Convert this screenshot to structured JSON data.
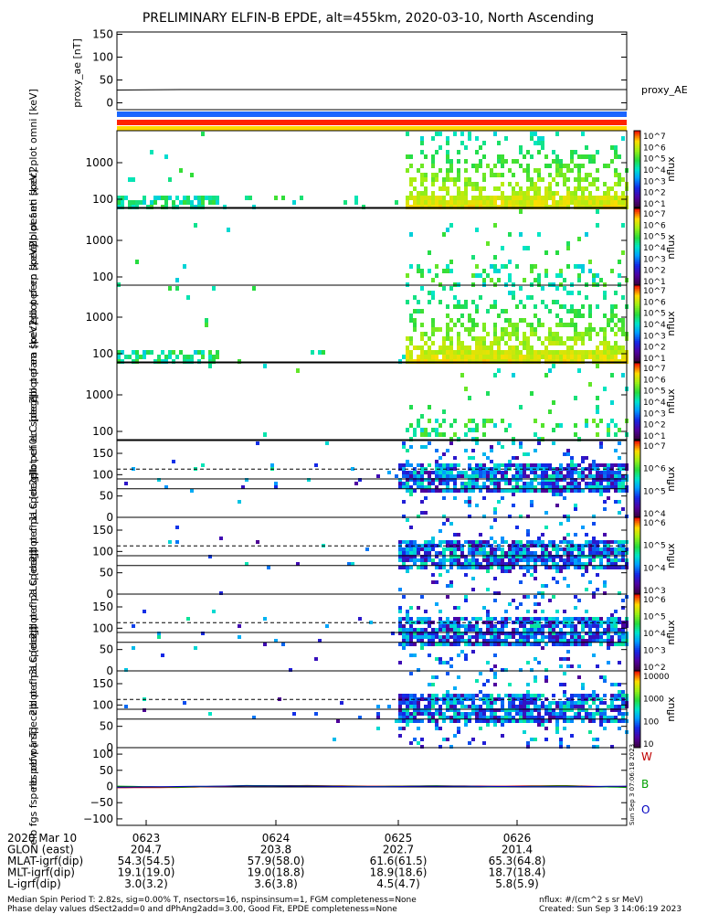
{
  "title": "PRELIMINARY ELFIN-B EPDE, alt=455km, 2020-03-10, North Ascending",
  "colors": {
    "orbit_bar_1": "#1a66ff",
    "orbit_bar_2": "#ff2200",
    "orbit_bar_3": "#ffd700"
  },
  "chart_data": [
    {
      "type": "line",
      "ylabel": "proxy_ae [nT]",
      "yticks": [
        "150",
        "100",
        "50",
        "0"
      ],
      "ylim": [
        -15,
        155
      ],
      "series": [
        {
          "name": "proxy_AE",
          "values": [
            28,
            29,
            29,
            29,
            29,
            29,
            29,
            29,
            29
          ]
        }
      ]
    },
    {
      "type": "heatmap",
      "ylabel": "elb pef en spec2plot omni [keV]",
      "yscale": "log",
      "yticks": [
        "1000",
        "100"
      ],
      "ylim": [
        60,
        6000
      ],
      "colorbar": {
        "label": "nflux",
        "ticks": [
          "10^7",
          "10^6",
          "10^5",
          "10^4",
          "10^3",
          "10^2",
          "10^1"
        ]
      }
    },
    {
      "type": "heatmap",
      "ylabel": "elb pef en spec2plot anti [keV]",
      "yscale": "log",
      "yticks": [
        "1000",
        "100"
      ],
      "ylim": [
        60,
        6000
      ],
      "colorbar": {
        "label": "nflux",
        "ticks": [
          "10^7",
          "10^6",
          "10^5",
          "10^4",
          "10^3",
          "10^2",
          "10^1"
        ]
      }
    },
    {
      "type": "heatmap",
      "ylabel": "elb pef en spec2plot perp [keV]",
      "yscale": "log",
      "yticks": [
        "1000",
        "100"
      ],
      "ylim": [
        60,
        6000
      ],
      "colorbar": {
        "label": "nflux",
        "ticks": [
          "10^7",
          "10^6",
          "10^5",
          "10^4",
          "10^3",
          "10^2",
          "10^1"
        ]
      }
    },
    {
      "type": "heatmap",
      "ylabel": "elb pef en spec2plot para [keV]",
      "yscale": "log",
      "yticks": [
        "1000",
        "100"
      ],
      "ylim": [
        60,
        6000
      ],
      "colorbar": {
        "label": "nflux",
        "ticks": [
          "10^7",
          "10^6",
          "10^5",
          "10^4",
          "10^3",
          "10^2",
          "10^1"
        ]
      }
    },
    {
      "type": "heatmap",
      "ylabel": "elb pef pa spec2plot ch0LC [deg]",
      "yticks": [
        "150",
        "100",
        "50",
        "0"
      ],
      "ylim": [
        0,
        180
      ],
      "colorbar": {
        "label": "nflux",
        "ticks": [
          "10^7",
          "10^6",
          "10^5",
          "10^4"
        ]
      }
    },
    {
      "type": "heatmap",
      "ylabel": "elb pef pa spec2plot ch1LC [deg]",
      "yticks": [
        "150",
        "100",
        "50",
        "0"
      ],
      "ylim": [
        0,
        180
      ],
      "colorbar": {
        "label": "nflux",
        "ticks": [
          "10^6",
          "10^5",
          "10^4",
          "10^3"
        ]
      }
    },
    {
      "type": "heatmap",
      "ylabel": "elb pef pa spec2plot ch2LC [deg]",
      "yticks": [
        "150",
        "100",
        "50",
        "0"
      ],
      "ylim": [
        0,
        180
      ],
      "colorbar": {
        "label": "nflux",
        "ticks": [
          "10^6",
          "10^5",
          "10^4",
          "10^3",
          "10^2"
        ]
      }
    },
    {
      "type": "heatmap",
      "ylabel": "elb pef pa spec2plot ch3LC [deg]",
      "yticks": [
        "150",
        "100",
        "50",
        "0"
      ],
      "ylim": [
        0,
        180
      ],
      "colorbar": {
        "label": "nflux",
        "ticks": [
          "10000",
          "1000",
          "100",
          "10"
        ]
      }
    },
    {
      "type": "line",
      "ylabel": "elb fgs fsp res obw [nT]",
      "yticks": [
        "100",
        "50",
        "0",
        "−50",
        "−100"
      ],
      "ylim": [
        -120,
        120
      ],
      "series": [
        {
          "name": "W",
          "values": [
            -4,
            -3,
            2,
            3,
            1,
            2,
            1,
            3,
            -2
          ]
        },
        {
          "name": "B",
          "values": [
            1,
            -2,
            3,
            2,
            0,
            2,
            -1,
            2,
            -3
          ]
        },
        {
          "name": "O",
          "values": [
            -2,
            0,
            2,
            1,
            -1,
            1,
            0,
            -1,
            1
          ]
        }
      ],
      "sidenote": "Sun Sep 3 07:06:18 2023"
    }
  ],
  "orbit_table": {
    "rows": [
      {
        "label": "2020 Mar 10",
        "values": [
          "0623",
          "0624",
          "0625",
          "0626"
        ]
      },
      {
        "label": "GLON (east)",
        "values": [
          "204.7",
          "203.8",
          "202.7",
          "201.4"
        ]
      },
      {
        "label": "MLAT-igrf(dip)",
        "values": [
          "54.3(54.5)",
          "57.9(58.0)",
          "61.6(61.5)",
          "65.3(64.8)"
        ]
      },
      {
        "label": "MLT-igrf(dip)",
        "values": [
          "19.1(19.0)",
          "19.0(18.8)",
          "18.9(18.6)",
          "18.7(18.4)"
        ]
      },
      {
        "label": "L-igrf(dip)",
        "values": [
          "3.0(3.2)",
          "3.6(3.8)",
          "4.5(4.7)",
          "5.8(5.9)"
        ]
      }
    ]
  },
  "footer": {
    "line1": "Median Spin Period T: 2.82s, sig=0.00% T, nsectors=16, nspinsinsum=1, FGM completeness=None",
    "line2": "Phase delay values dSect2add=0 and dPhAng2add=3.00, Good Fit, EPDE completeness=None",
    "units": "nflux: #/(cm^2 s sr MeV)",
    "created": "Created: Sun Sep  3 14:06:19 2023"
  }
}
